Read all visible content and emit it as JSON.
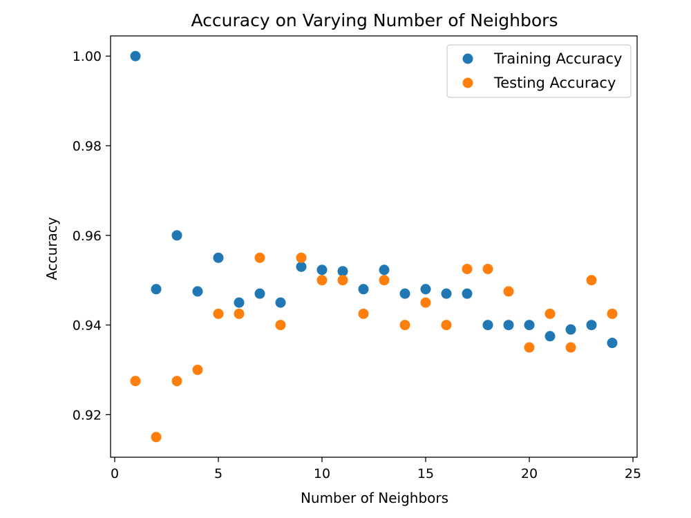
{
  "chart_data": {
    "type": "scatter",
    "title": "Accuracy on Varying Number of Neighbors",
    "xlabel": "Number of Neighbors",
    "ylabel": "Accuracy",
    "xlim": [
      -0.2,
      25.2
    ],
    "ylim": [
      0.9105,
      1.0045
    ],
    "xticks": [
      0,
      5,
      10,
      15,
      20,
      25
    ],
    "xtick_labels": [
      "0",
      "5",
      "10",
      "15",
      "20",
      "25"
    ],
    "yticks": [
      0.92,
      0.94,
      0.96,
      0.98,
      1.0
    ],
    "ytick_labels": [
      "0.92",
      "0.94",
      "0.96",
      "0.98",
      "1.00"
    ],
    "grid": false,
    "legend_position": "top-right",
    "x": [
      1,
      2,
      3,
      4,
      5,
      6,
      7,
      8,
      9,
      10,
      11,
      12,
      13,
      14,
      15,
      16,
      17,
      18,
      19,
      20,
      21,
      22,
      23,
      24
    ],
    "series": [
      {
        "name": "Training Accuracy",
        "color": "#1f77b4",
        "values": [
          1.0,
          0.948,
          0.96,
          0.9475,
          0.955,
          0.945,
          0.947,
          0.945,
          0.953,
          0.9523,
          0.952,
          0.948,
          0.9523,
          0.947,
          0.948,
          0.947,
          0.947,
          0.94,
          0.94,
          0.94,
          0.9375,
          0.939,
          0.94,
          0.936
        ]
      },
      {
        "name": "Testing Accuracy",
        "color": "#ff7f0e",
        "values": [
          0.9275,
          0.915,
          0.9275,
          0.93,
          0.9425,
          0.9425,
          0.955,
          0.94,
          0.955,
          0.95,
          0.95,
          0.9425,
          0.95,
          0.94,
          0.945,
          0.94,
          0.9525,
          0.9525,
          0.9475,
          0.935,
          0.9425,
          0.935,
          0.95,
          0.9425
        ]
      }
    ]
  }
}
